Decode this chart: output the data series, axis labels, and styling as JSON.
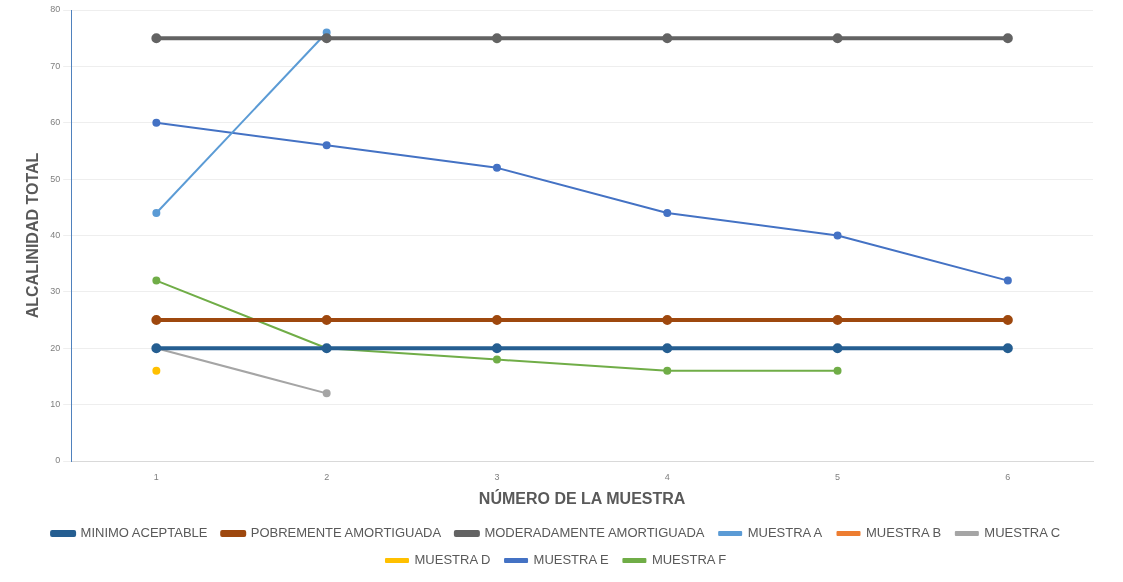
{
  "chart_data": {
    "type": "line",
    "xlabel": "NÚMERO DE LA MUESTRA",
    "ylabel": "ALCALINIDAD TOTAL",
    "categories": [
      "1",
      "2",
      "3",
      "4",
      "5",
      "6"
    ],
    "ylim": [
      0,
      80
    ],
    "yticks": [
      0,
      10,
      20,
      30,
      40,
      50,
      60,
      70,
      80
    ],
    "grid": "y",
    "legend": "bottom",
    "marker": "circle",
    "series": [
      {
        "name": "MINIMO ACEPTABLE",
        "color": "#255e91",
        "values": [
          20,
          20,
          20,
          20,
          20,
          20
        ]
      },
      {
        "name": "POBREMENTE AMORTIGUADA",
        "color": "#9e480e",
        "values": [
          25,
          25,
          25,
          25,
          25,
          25
        ]
      },
      {
        "name": "MODERADAMENTE AMORTIGUADA",
        "color": "#636363",
        "values": [
          75,
          75,
          75,
          75,
          75,
          75
        ]
      },
      {
        "name": "MUESTRA A",
        "color": "#5b9bd5",
        "values": [
          44,
          76,
          null,
          null,
          null,
          null
        ]
      },
      {
        "name": "MUESTRA B",
        "color": "#ed7d31",
        "values": [
          null,
          null,
          null,
          null,
          null,
          null
        ]
      },
      {
        "name": "MUESTRA C",
        "color": "#a5a5a5",
        "values": [
          20,
          12,
          null,
          null,
          null,
          null
        ]
      },
      {
        "name": "MUESTRA D",
        "color": "#ffc000",
        "values": [
          16,
          null,
          null,
          null,
          null,
          null
        ]
      },
      {
        "name": "MUESTRA E",
        "color": "#4472c4",
        "values": [
          60,
          56,
          52,
          44,
          40,
          32
        ]
      },
      {
        "name": "MUESTRA F",
        "color": "#70ad47",
        "values": [
          32,
          20,
          18,
          16,
          16,
          null
        ]
      }
    ]
  }
}
